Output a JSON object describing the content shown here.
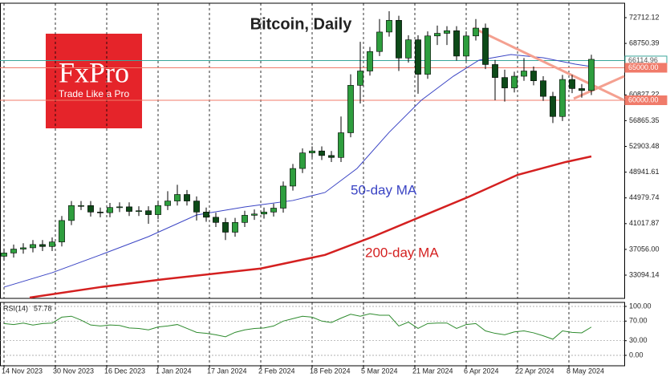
{
  "chart_data": [
    {
      "type": "candlestick",
      "title": "Bitcoin, Daily",
      "watermark": {
        "brand": "FxPro",
        "tagline": "Trade Like a Pro",
        "color": "#e5242a"
      },
      "x": [
        0,
        3,
        6,
        9,
        12,
        15,
        18,
        21,
        24,
        27,
        30,
        33,
        36,
        39,
        42,
        45,
        48,
        51,
        54,
        57,
        60,
        63,
        66,
        69,
        72,
        75,
        78,
        81,
        84,
        87,
        90,
        93,
        96,
        99,
        102,
        105,
        108,
        111,
        114,
        117,
        120,
        123,
        126,
        129,
        132,
        135,
        138,
        141,
        144,
        147,
        150,
        153,
        156,
        159,
        162,
        165,
        168,
        171,
        174,
        177,
        180,
        183
      ],
      "open": [
        36000,
        36500,
        37100,
        37300,
        37800,
        37500,
        38200,
        41500,
        43800,
        43800,
        42800,
        42700,
        43500,
        43600,
        42900,
        43000,
        42400,
        43800,
        44500,
        45500,
        44500,
        42800,
        42000,
        41200,
        39700,
        41200,
        42300,
        42500,
        42800,
        43400,
        46800,
        49500,
        51900,
        52200,
        51500,
        51200,
        55000,
        62300,
        64500,
        67500,
        70500,
        72300,
        66500,
        69300,
        64000,
        69900,
        70300,
        70700,
        66800,
        69900,
        71100,
        65500,
        63500,
        61900,
        63700,
        64500,
        63000,
        60600,
        57500,
        63200,
        61800,
        61500
      ],
      "high": [
        37200,
        37800,
        38000,
        38500,
        38500,
        38900,
        42200,
        44500,
        44500,
        44500,
        43500,
        44200,
        44300,
        44300,
        43700,
        43700,
        44500,
        46000,
        47000,
        46200,
        45200,
        43500,
        42700,
        41900,
        41900,
        43000,
        43200,
        43500,
        44100,
        47500,
        50200,
        52600,
        52900,
        52900,
        52200,
        57500,
        64000,
        69000,
        68200,
        72500,
        73700,
        73000,
        70000,
        70000,
        70600,
        71500,
        71400,
        71400,
        70600,
        72500,
        71800,
        66200,
        64700,
        64400,
        66500,
        65200,
        63700,
        61300,
        63900,
        63900,
        62500,
        67000
      ],
      "low": [
        35300,
        35800,
        36400,
        36600,
        36800,
        36800,
        37500,
        40800,
        43100,
        42100,
        42000,
        42000,
        42800,
        42200,
        42200,
        41000,
        41700,
        43100,
        43800,
        43800,
        41500,
        41300,
        40500,
        38500,
        39000,
        40500,
        41600,
        41800,
        42100,
        42700,
        46100,
        48800,
        51200,
        50800,
        50500,
        50500,
        54300,
        59500,
        63800,
        66800,
        69800,
        64500,
        65800,
        61000,
        63300,
        68500,
        68500,
        66100,
        66100,
        69200,
        64800,
        60000,
        59800,
        61200,
        63000,
        62300,
        59900,
        56500,
        56800,
        61100,
        60400,
        60800
      ],
      "close": [
        36500,
        37100,
        37300,
        37800,
        37500,
        38200,
        41500,
        43800,
        43800,
        42800,
        42700,
        43500,
        43600,
        42900,
        43000,
        42400,
        43800,
        44500,
        45500,
        44500,
        42800,
        42000,
        41200,
        39700,
        41200,
        42300,
        42500,
        42800,
        43400,
        46800,
        49500,
        51900,
        52200,
        51500,
        51200,
        55000,
        62300,
        64500,
        67500,
        70500,
        72300,
        66500,
        69300,
        64000,
        69900,
        70300,
        70700,
        66800,
        69900,
        71100,
        65500,
        63500,
        61900,
        63700,
        64500,
        63000,
        60600,
        57500,
        63200,
        61800,
        61500,
        66300
      ],
      "up_color": "#2e9e3e",
      "down_color": "#0d4a18",
      "xlim": [
        -1.25,
        193.25
      ],
      "xticks": [
        {
          "value": 0,
          "label": "14 Nov 2023"
        },
        {
          "value": 16,
          "label": "30 Nov 2023"
        },
        {
          "value": 32,
          "label": "16 Dec 2023"
        },
        {
          "value": 48,
          "label": "1 Jan 2024"
        },
        {
          "value": 64,
          "label": "17 Jan 2024"
        },
        {
          "value": 80,
          "label": "2 Feb 2024"
        },
        {
          "value": 96,
          "label": "18 Feb 2024"
        },
        {
          "value": 112,
          "label": "5 Mar 2024"
        },
        {
          "value": 128,
          "label": "21 Mar 2024"
        },
        {
          "value": 144,
          "label": "6 Apr 2024"
        },
        {
          "value": 160,
          "label": "22 Apr 2024"
        },
        {
          "value": 176,
          "label": "8 May 2024"
        }
      ],
      "ylim": [
        29515,
        74934
      ],
      "yticks": [
        72712.12,
        68750.39,
        60827.22,
        56865.35,
        52903.48,
        48941.61,
        44979.74,
        41017.87,
        {
          "value": 37056,
          "label": "37056.00"
        },
        33094.14
      ],
      "series": [
        {
          "name": "50-day MA",
          "color": "#3a44c4",
          "x": [
            0,
            15,
            30,
            45,
            60,
            75,
            90,
            100,
            110,
            120,
            130,
            140,
            148,
            158,
            168,
            178,
            183
          ],
          "values": [
            31250,
            33470,
            36200,
            39020,
            42350,
            43590,
            44580,
            45810,
            49510,
            55070,
            60000,
            63700,
            66170,
            67040,
            66540,
            65550,
            65180
          ]
        },
        {
          "name": "200-day MA",
          "color": "#d42020",
          "x": [
            8,
            30,
            50,
            80,
            100,
            115,
            130,
            145,
            160,
            175,
            183
          ],
          "values": [
            29640,
            31250,
            32480,
            34110,
            36200,
            39020,
            42110,
            45190,
            48520,
            50500,
            51360
          ]
        }
      ],
      "levels": [
        {
          "value": 66114.96,
          "label": "66114.96",
          "color": "#3aa79a"
        },
        {
          "value": 65000,
          "label": "65000.00",
          "color": "#f07b6a"
        },
        {
          "value": 60000,
          "label": "60000.00",
          "color": "#f07b6a"
        }
      ],
      "trendlines": [
        {
          "color": "#f4a090",
          "x": [
            146.25,
            193.25
          ],
          "values": [
            71110,
            60000
          ]
        },
        {
          "color": "#f4a090",
          "x": [
            177.5,
            193.25
          ],
          "values": [
            60250,
            63700
          ]
        }
      ]
    },
    {
      "type": "line",
      "x": [
        0,
        3,
        6,
        9,
        12,
        15,
        18,
        21,
        24,
        27,
        30,
        33,
        36,
        39,
        42,
        45,
        48,
        51,
        54,
        57,
        60,
        63,
        66,
        69,
        72,
        75,
        78,
        81,
        84,
        87,
        90,
        93,
        96,
        99,
        102,
        105,
        108,
        111,
        114,
        117,
        120,
        123,
        126,
        129,
        132,
        135,
        138,
        141,
        144,
        147,
        150,
        153,
        156,
        159,
        162,
        165,
        168,
        171,
        174,
        177,
        180,
        183
      ],
      "series": [
        {
          "name": "RSI(14)",
          "color": "#2e8b2e",
          "values": [
            65,
            63,
            66,
            62,
            65,
            66,
            78,
            80,
            72,
            62,
            60,
            62,
            61,
            56,
            55,
            52,
            58,
            60,
            63,
            55,
            47,
            45,
            42,
            38,
            47,
            52,
            55,
            56,
            60,
            70,
            75,
            80,
            78,
            70,
            67,
            76,
            84,
            80,
            85,
            82,
            82,
            60,
            68,
            55,
            65,
            66,
            66,
            55,
            63,
            65,
            50,
            45,
            42,
            48,
            50,
            46,
            40,
            33,
            50,
            47,
            46,
            57.78
          ]
        }
      ],
      "xlim": [
        -1.25,
        193.25
      ],
      "ylim": [
        -21.3,
        108.2
      ],
      "yticks": [
        {
          "value": 100,
          "label": "100.00"
        },
        {
          "value": 70,
          "label": "70.00"
        },
        {
          "value": 30,
          "label": "30.00"
        },
        {
          "value": 0,
          "label": "0.00"
        }
      ],
      "grid": true
    }
  ]
}
